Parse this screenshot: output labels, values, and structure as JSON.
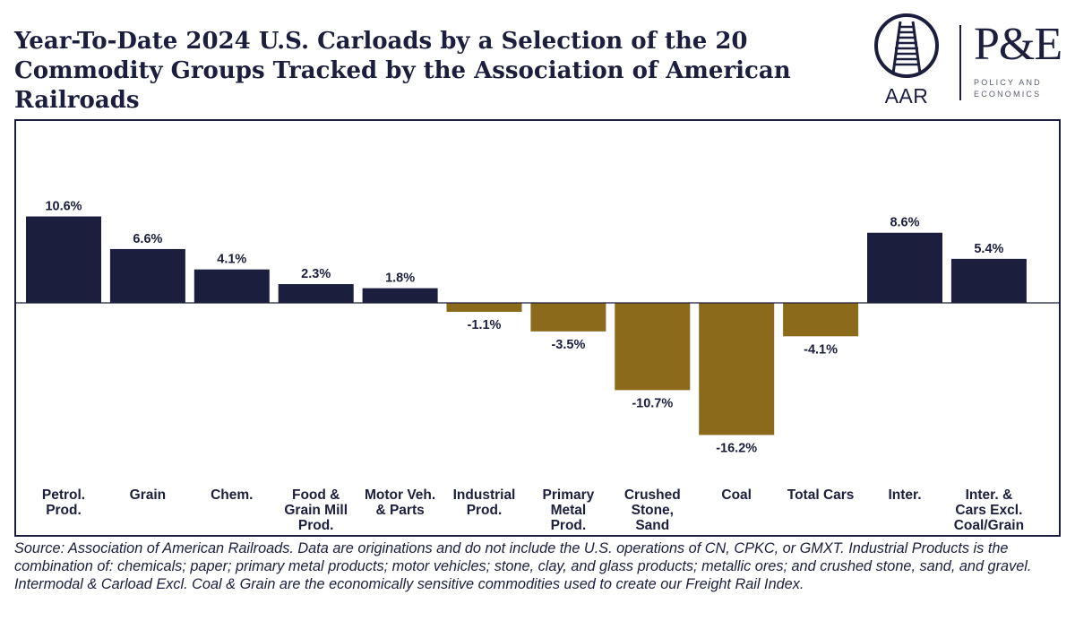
{
  "title": "Year-To-Date 2024 U.S. Carloads by a Selection of the 20 Commodity Groups Tracked by the Association of American Railroads",
  "logos": {
    "aar": "AAR",
    "pe": "P&E",
    "pe_sub": "POLICY AND ECONOMICS"
  },
  "chart_data": {
    "type": "bar",
    "categories": [
      "Petrol. Prod.",
      "Grain",
      "Chem.",
      "Food & Grain Mill Prod.",
      "Motor Veh. & Parts",
      "Industrial Prod.",
      "Primary Metal Prod.",
      "Crushed Stone, Sand",
      "Coal",
      "Total Cars",
      "Inter.",
      "Inter. & Cars Excl. Coal/Grain"
    ],
    "category_lines": [
      [
        "Petrol.",
        "Prod."
      ],
      [
        "Grain"
      ],
      [
        "Chem."
      ],
      [
        "Food &",
        "Grain Mill",
        "Prod."
      ],
      [
        "Motor Veh.",
        "& Parts"
      ],
      [
        "Industrial",
        "Prod."
      ],
      [
        "Primary",
        "Metal",
        "Prod."
      ],
      [
        "Crushed",
        "Stone,",
        "Sand"
      ],
      [
        "Coal"
      ],
      [
        "Total Cars"
      ],
      [
        "Inter."
      ],
      [
        "Inter. &",
        "Cars Excl.",
        "Coal/Grain"
      ]
    ],
    "values": [
      10.6,
      6.6,
      4.1,
      2.3,
      1.8,
      -1.1,
      -3.5,
      -10.7,
      -16.2,
      -4.1,
      8.6,
      5.4
    ],
    "value_labels": [
      "10.6%",
      "6.6%",
      "4.1%",
      "2.3%",
      "1.8%",
      "-1.1%",
      "-3.5%",
      "-10.7%",
      "-16.2%",
      "-4.1%",
      "8.6%",
      "5.4%"
    ],
    "unit": "%",
    "ylim": [
      -16.2,
      10.6
    ],
    "colors": {
      "positive": "#1b1e3c",
      "negative": "#8c6a1c",
      "axis": "#1b1e3c"
    },
    "grid": false,
    "legend": "none"
  },
  "source": "Source: Association of American Railroads. Data are originations and do not include the U.S. operations of CN, CPKC, or GMXT. Industrial Products is the combination of: chemicals; paper; primary metal products; motor vehicles; stone, clay, and glass products; metallic ores; and crushed stone, sand, and gravel. Intermodal & Carload Excl. Coal & Grain are the economically sensitive commodities used to create our Freight Rail Index."
}
